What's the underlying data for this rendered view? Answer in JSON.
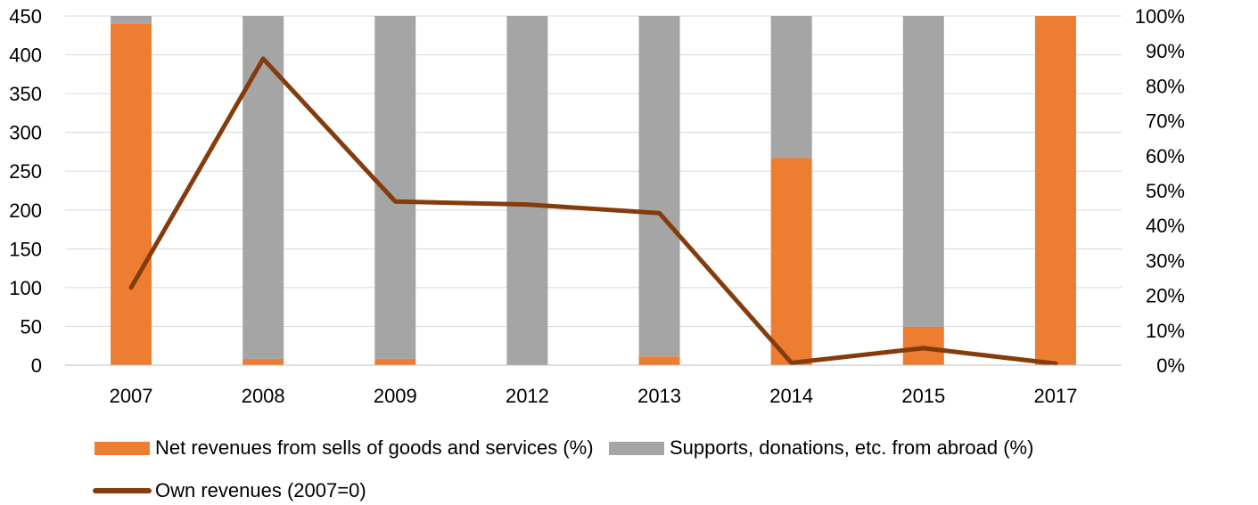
{
  "chart_data": {
    "type": "bar",
    "stacked": true,
    "categories": [
      "2007",
      "2008",
      "2009",
      "2012",
      "2013",
      "2014",
      "2015",
      "2017"
    ],
    "series": [
      {
        "name": "Net revenues from sells of goods and services (%)",
        "axis": "right",
        "color": "#ED7D31",
        "values": [
          97.8,
          1.8,
          1.8,
          0,
          2.5,
          59.3,
          11,
          100
        ]
      },
      {
        "name": "Supports, donations, etc. from abroad (%)",
        "axis": "right",
        "color": "#A5A5A5",
        "values": [
          2.2,
          98.2,
          98.2,
          100,
          97.5,
          40.7,
          89,
          0
        ]
      },
      {
        "name": "Own revenues (2007=0)",
        "axis": "left",
        "type": "line",
        "color": "#843C0C",
        "values": [
          100,
          395,
          211,
          207,
          196,
          3,
          22,
          2
        ]
      }
    ],
    "y_left": {
      "min": 0,
      "max": 450,
      "step": 50,
      "ticks": [
        "0",
        "50",
        "100",
        "150",
        "200",
        "250",
        "300",
        "350",
        "400",
        "450"
      ]
    },
    "y_right": {
      "min": 0,
      "max": 100,
      "step": 10,
      "ticks": [
        "0%",
        "10%",
        "20%",
        "30%",
        "40%",
        "50%",
        "60%",
        "70%",
        "80%",
        "90%",
        "100%"
      ]
    },
    "grid": true,
    "legend_placement": "bottom",
    "title": ""
  }
}
